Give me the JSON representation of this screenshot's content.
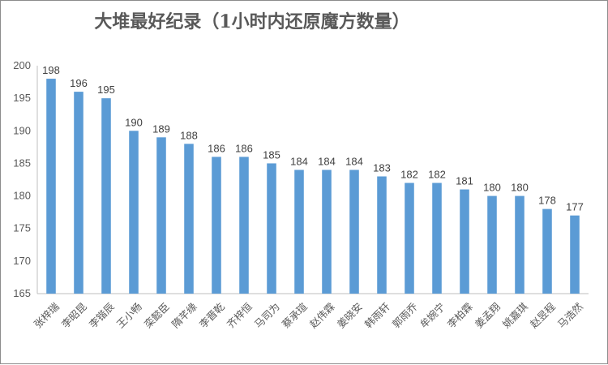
{
  "chart_data": {
    "type": "bar",
    "title": "大堆最好纪录（1小时内还原魔方数量）",
    "xlabel": "",
    "ylabel": "",
    "ylim": [
      165,
      200
    ],
    "yticks": [
      165,
      170,
      175,
      180,
      185,
      190,
      195,
      200
    ],
    "grid": false,
    "legend": "none",
    "bar_color": "#5b9bd5",
    "categories": [
      "张梓瑞",
      "李昭昆",
      "李锴辰",
      "王小畅",
      "栾懿臣",
      "隋芊缘",
      "李晋乾",
      "齐梓恒",
      "马司为",
      "蔡承瑄",
      "赵伟霖",
      "姜晓安",
      "韩雨轩",
      "郭雨乔",
      "牟婉宁",
      "李柏霖",
      "姜孟翔",
      "姚嘉琪",
      "赵昱程",
      "马浩然"
    ],
    "values": [
      198,
      196,
      195,
      190,
      189,
      188,
      186,
      186,
      185,
      184,
      184,
      184,
      183,
      182,
      182,
      181,
      180,
      180,
      178,
      177
    ]
  }
}
